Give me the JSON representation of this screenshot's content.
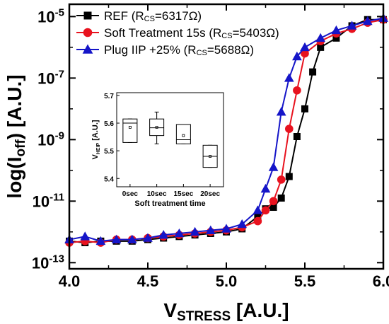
{
  "chart_data": [
    {
      "type": "line",
      "xlabel": {
        "main": "V",
        "sub": "STRESS",
        "unit": " [A.U.]"
      },
      "ylabel": {
        "pre": "log(I",
        "sub": "off",
        "post": ") [A.U.]"
      },
      "x_ticks": [
        "4.0",
        "4.5",
        "5.0",
        "5.5",
        "6.0"
      ],
      "y_ticks": [
        {
          "base": "10",
          "exp": "-13",
          "value": -13
        },
        {
          "base": "10",
          "exp": "-11",
          "value": -11
        },
        {
          "base": "10",
          "exp": "-9",
          "value": -9
        },
        {
          "base": "10",
          "exp": "-7",
          "value": -7
        },
        {
          "base": "10",
          "exp": "-5",
          "value": -5
        }
      ],
      "xlim": [
        4.0,
        6.0
      ],
      "ylim_log10": [
        -13.2,
        -4.6
      ],
      "y_scale": "log",
      "legend_placement": "top-left",
      "series": [
        {
          "name_pre": "REF (R",
          "name_sub": "CS",
          "name_post": "=6317Ω)",
          "color": "#000000",
          "marker": "square",
          "x": [
            4.0,
            4.1,
            4.2,
            4.3,
            4.4,
            4.5,
            4.6,
            4.7,
            4.8,
            4.9,
            5.0,
            5.1,
            5.2,
            5.25,
            5.3,
            5.35,
            5.4,
            5.45,
            5.5,
            5.55,
            5.6,
            5.7,
            5.8,
            5.9,
            6.0
          ],
          "y_log10": [
            -12.3,
            -12.35,
            -12.3,
            -12.3,
            -12.3,
            -12.25,
            -12.2,
            -12.15,
            -12.1,
            -12.05,
            -12.0,
            -11.9,
            -11.5,
            -11.25,
            -11.2,
            -10.9,
            -10.2,
            -8.9,
            -8.0,
            -6.8,
            -6.0,
            -5.7,
            -5.3,
            -5.1,
            -5.1
          ]
        },
        {
          "name_pre": "Soft Treatment 15s (R",
          "name_sub": "CS",
          "name_post": "=5403Ω)",
          "color": "#e8121e",
          "marker": "circle",
          "x": [
            4.0,
            4.1,
            4.2,
            4.3,
            4.4,
            4.5,
            4.6,
            4.7,
            4.8,
            4.9,
            5.0,
            5.1,
            5.2,
            5.25,
            5.3,
            5.35,
            5.4,
            5.45,
            5.5,
            5.6,
            5.7,
            5.8,
            5.9,
            6.0
          ],
          "y_log10": [
            -12.35,
            -12.3,
            -12.35,
            -12.25,
            -12.25,
            -12.2,
            -12.15,
            -12.1,
            -12.05,
            -12.0,
            -11.95,
            -11.85,
            -11.65,
            -11.3,
            -11.0,
            -10.3,
            -8.65,
            -7.4,
            -6.2,
            -5.8,
            -5.55,
            -5.4,
            -5.2,
            -5.1
          ]
        },
        {
          "name_pre": "Plug IIP +25% (R",
          "name_sub": "CS",
          "name_post": "=5688Ω)",
          "color": "#1515c8",
          "marker": "triangle",
          "x": [
            4.0,
            4.1,
            4.2,
            4.3,
            4.4,
            4.5,
            4.6,
            4.7,
            4.8,
            4.9,
            5.0,
            5.1,
            5.2,
            5.25,
            5.3,
            5.35,
            5.4,
            5.45,
            5.5,
            5.6,
            5.7,
            5.8,
            5.9,
            6.0
          ],
          "y_log10": [
            -12.25,
            -12.15,
            -12.3,
            -12.25,
            -12.25,
            -12.2,
            -12.1,
            -12.05,
            -12.0,
            -11.95,
            -11.9,
            -11.75,
            -11.3,
            -10.6,
            -9.9,
            -8.1,
            -7.0,
            -6.3,
            -6.0,
            -5.7,
            -5.45,
            -5.3,
            -5.15,
            -5.05
          ]
        }
      ]
    },
    {
      "type": "box",
      "ylabel": {
        "main": "V",
        "sub": "HEIP",
        "unit": " [A.U.]"
      },
      "xlabel": "Soft treatment time",
      "categories": [
        "0sec",
        "10sec",
        "15sec",
        "20sec"
      ],
      "y_ticks": [
        "5.4",
        "5.5",
        "5.6",
        "5.7"
      ],
      "ylim": [
        5.37,
        5.71
      ],
      "boxes": [
        {
          "q1": 5.53,
          "median": 5.6,
          "q3": 5.615,
          "whisker_low": 5.53,
          "whisker_high": 5.615,
          "mean": 5.585
        },
        {
          "q1": 5.555,
          "median": 5.583,
          "q3": 5.615,
          "whisker_low": 5.525,
          "whisker_high": 5.64,
          "mean": 5.585
        },
        {
          "q1": 5.525,
          "median": 5.54,
          "q3": 5.595,
          "whisker_low": 5.525,
          "whisker_high": 5.595,
          "mean": 5.555
        },
        {
          "q1": 5.44,
          "median": 5.48,
          "q3": 5.52,
          "whisker_low": 5.44,
          "whisker_high": 5.52,
          "mean": 5.48
        }
      ]
    }
  ]
}
